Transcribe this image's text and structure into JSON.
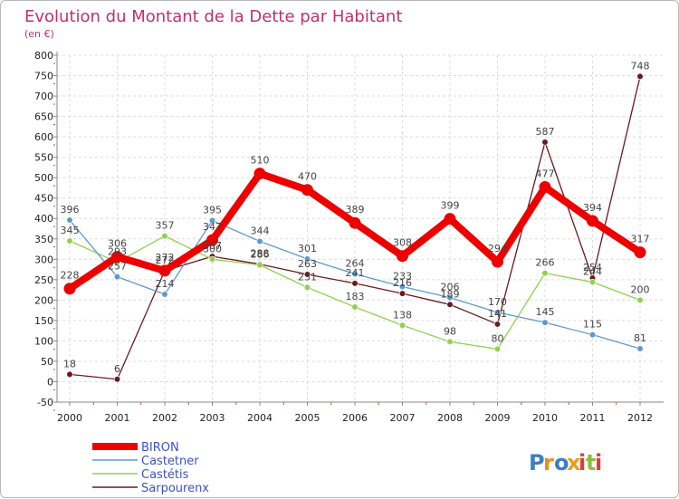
{
  "chart_data": {
    "type": "line",
    "title": "Evolution du Montant de la Dette par Habitant",
    "subtitle": "(en €)",
    "x": [
      "2000",
      "2001",
      "2002",
      "2003",
      "2004",
      "2005",
      "2006",
      "2007",
      "2008",
      "2009",
      "2010",
      "2011",
      "2012"
    ],
    "ylim": [
      -50,
      800
    ],
    "yticks": [
      -50,
      0,
      50,
      100,
      150,
      200,
      250,
      300,
      350,
      400,
      450,
      500,
      550,
      600,
      650,
      700,
      750,
      800
    ],
    "grid": true,
    "legend_position": "bottom-left",
    "series": [
      {
        "name": "Sarpourenx",
        "color": "#6a1a1e",
        "values": [
          18,
          6,
          272,
          307,
          288,
          263,
          241,
          216,
          189,
          141,
          587,
          254,
          748
        ]
      },
      {
        "name": "Castétis",
        "color": "#92d050",
        "values": [
          345,
          293,
          357,
          300,
          286,
          231,
          183,
          138,
          98,
          80,
          266,
          244,
          200
        ]
      },
      {
        "name": "Castetner",
        "color": "#5e9ad0",
        "values": [
          396,
          257,
          214,
          395,
          344,
          301,
          264,
          233,
          206,
          170,
          145,
          115,
          81
        ]
      },
      {
        "name": "BIRON",
        "color": "#ee0000",
        "values": [
          228,
          306,
          272,
          347,
          510,
          470,
          389,
          308,
          399,
          294,
          477,
          394,
          317
        ]
      }
    ],
    "legend_order": [
      "BIRON",
      "Castetner",
      "Castétis",
      "Sarpourenx"
    ]
  },
  "watermark": {
    "text": "Proxiti"
  }
}
